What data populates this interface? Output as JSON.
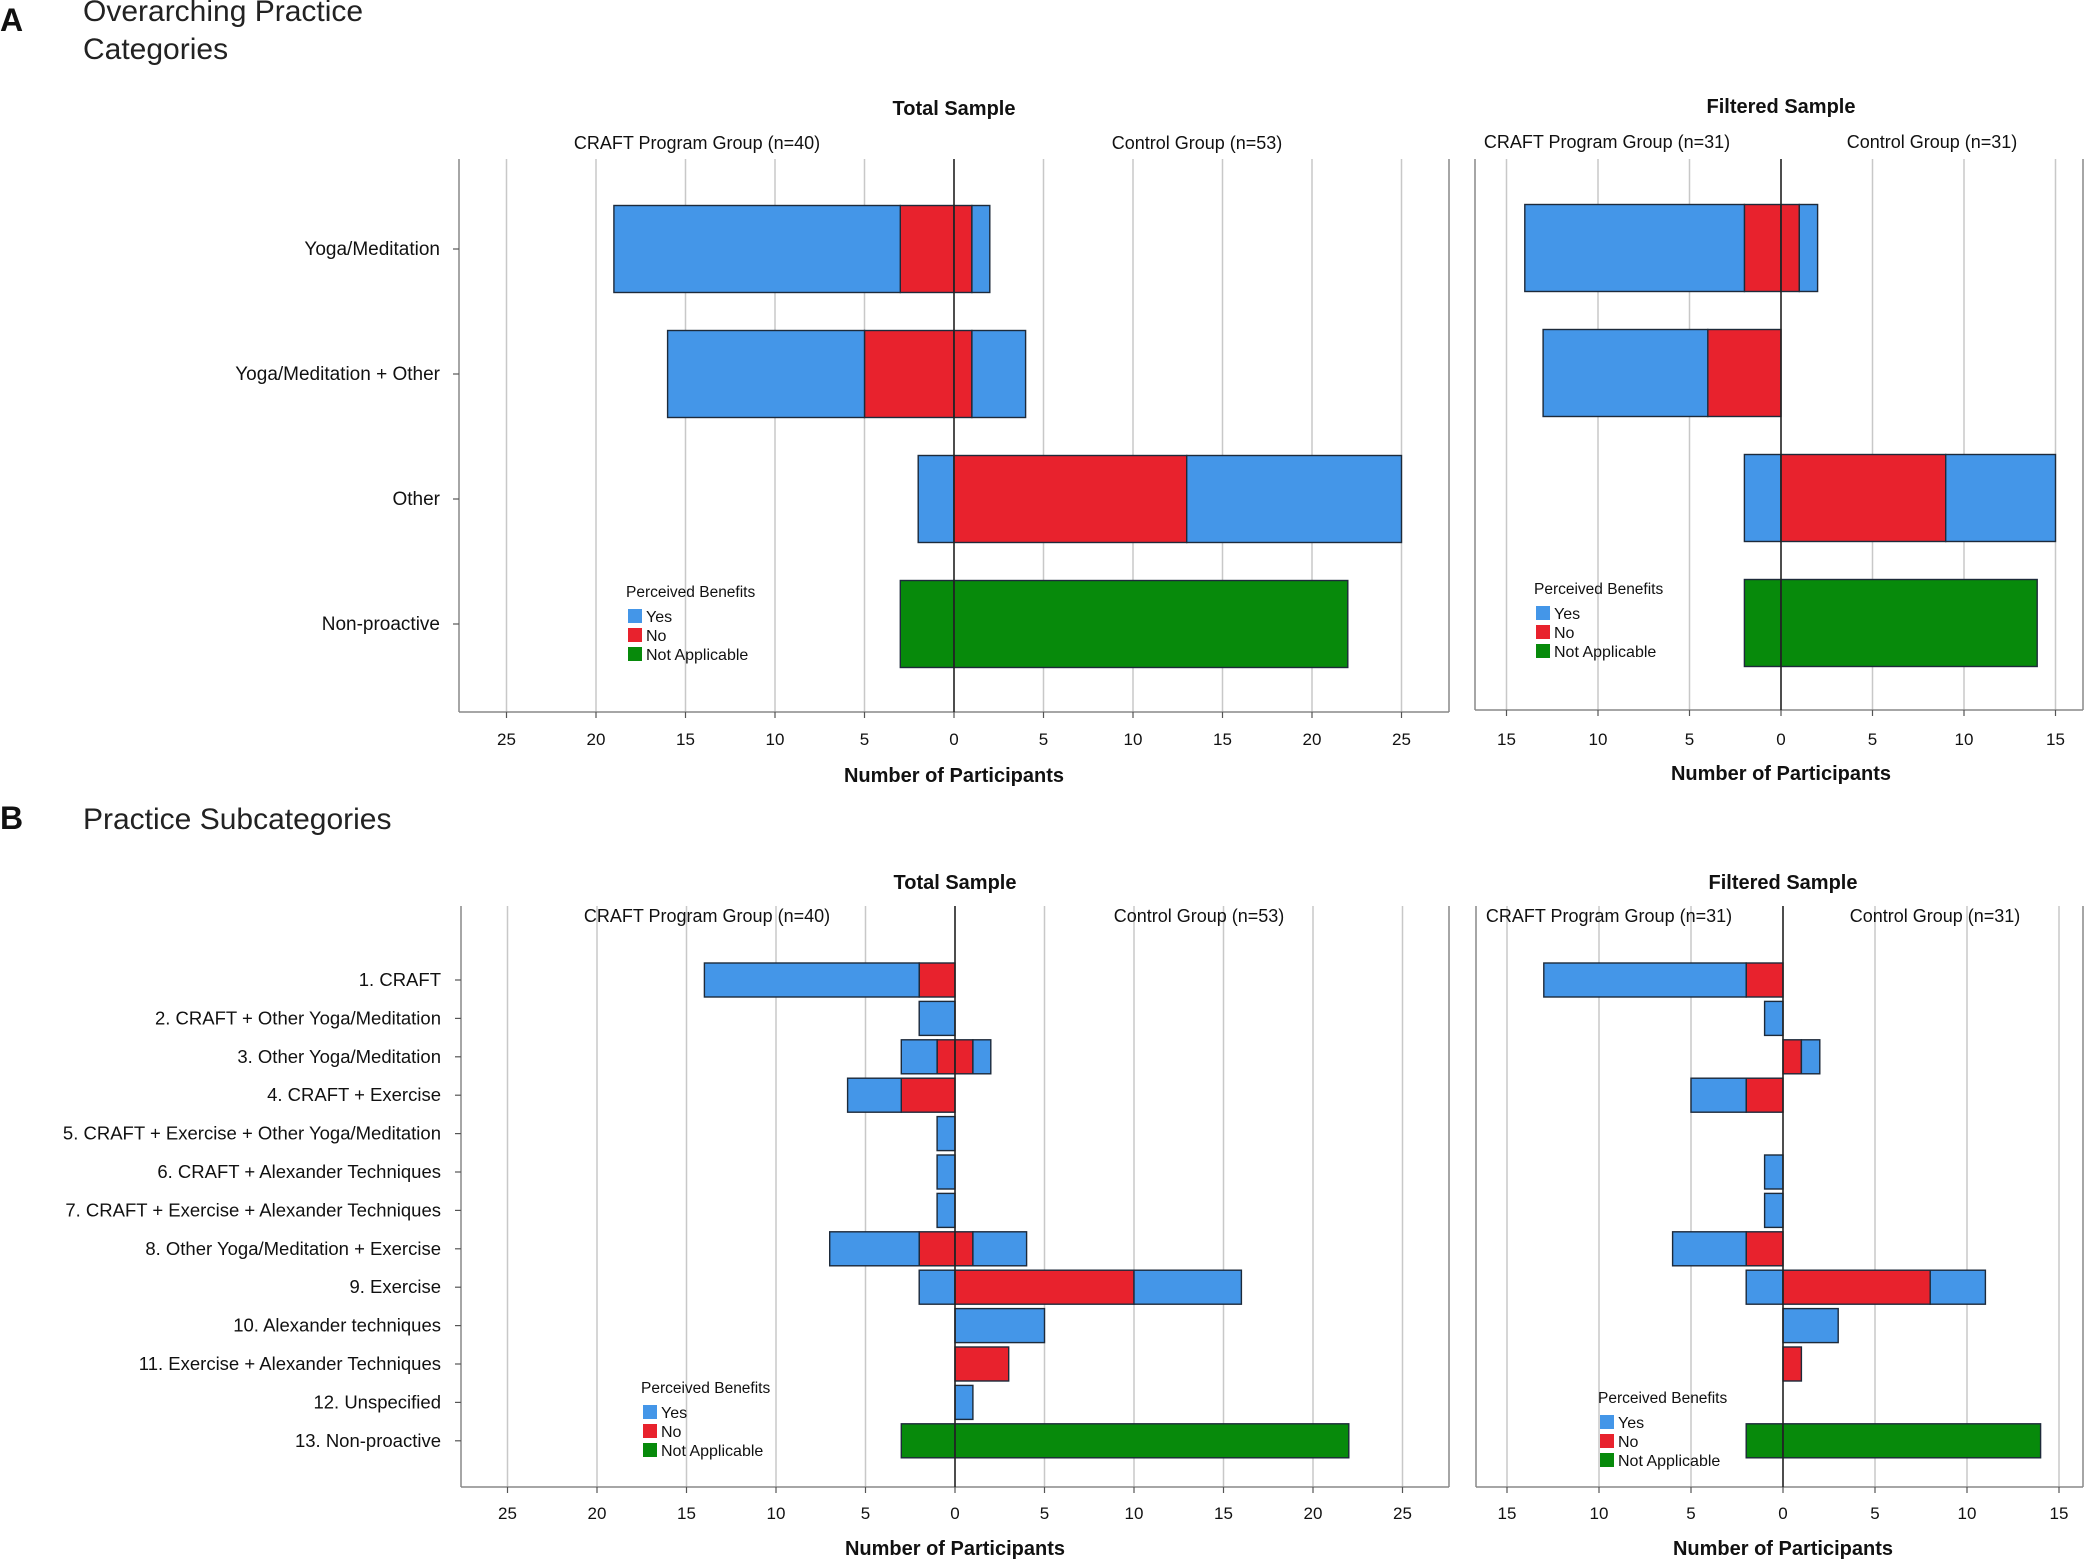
{
  "figure": {
    "panel_a": {
      "letter": "A",
      "title_line1": "Overarching Practice",
      "title_line2": "Categories"
    },
    "panel_b": {
      "letter": "B",
      "title": "Practice Subcategories"
    }
  },
  "colors": {
    "yes": "#4496e8",
    "no": "#e8222d",
    "not_applicable": "#078a0b",
    "axis": "#333333",
    "grid": "#c8c8c8"
  },
  "chart_data": [
    {
      "id": "A-total",
      "type": "bar",
      "orientation": "horizontal-diverging",
      "title": "Total Sample",
      "left_group": "CRAFT Program Group (n=40)",
      "right_group": "Control Group (n=53)",
      "xlabel": "Number of Participants",
      "xlim": [
        -27,
        28
      ],
      "ticks": [
        25,
        20,
        15,
        10,
        5,
        0,
        5,
        10,
        15,
        20,
        25
      ],
      "legend": {
        "title": "Perceived Benefits",
        "items": [
          "Yes",
          "No",
          "Not Applicable"
        ]
      },
      "categories": [
        "Yoga/Meditation",
        "Yoga/Meditation + Other",
        "Other",
        "Non-proactive"
      ],
      "craft": {
        "no": [
          3,
          5,
          0,
          0
        ],
        "yes": [
          16,
          11,
          2,
          0
        ],
        "not_applicable": [
          0,
          0,
          0,
          3
        ]
      },
      "control": {
        "no": [
          1,
          1,
          13,
          0
        ],
        "yes": [
          1,
          3,
          12,
          0
        ],
        "not_applicable": [
          0,
          0,
          0,
          22
        ]
      }
    },
    {
      "id": "A-filtered",
      "type": "bar",
      "orientation": "horizontal-diverging",
      "title": "Filtered Sample",
      "left_group": "CRAFT Program Group (n=31)",
      "right_group": "Control Group (n=31)",
      "xlabel": "Number of Participants",
      "xlim": [
        -16,
        16.5
      ],
      "ticks": [
        15,
        10,
        5,
        0,
        5,
        10,
        15
      ],
      "legend": {
        "title": "Perceived Benefits",
        "items": [
          "Yes",
          "No",
          "Not Applicable"
        ]
      },
      "categories": [
        "Yoga/Meditation",
        "Yoga/Meditation + Other",
        "Other",
        "Non-proactive"
      ],
      "craft": {
        "no": [
          2,
          4,
          0,
          0
        ],
        "yes": [
          12,
          9,
          2,
          0
        ],
        "not_applicable": [
          0,
          0,
          0,
          2
        ]
      },
      "control": {
        "no": [
          1,
          0,
          9,
          0
        ],
        "yes": [
          1,
          0,
          6,
          0
        ],
        "not_applicable": [
          0,
          0,
          0,
          14
        ]
      }
    },
    {
      "id": "B-total",
      "type": "bar",
      "orientation": "horizontal-diverging",
      "title": "Total Sample",
      "left_group": "CRAFT Program Group (n=40)",
      "right_group": "Control Group (n=53)",
      "xlabel": "Number of Participants",
      "xlim": [
        -27,
        28
      ],
      "ticks": [
        25,
        20,
        15,
        10,
        5,
        0,
        5,
        10,
        15,
        20,
        25
      ],
      "legend": {
        "title": "Perceived Benefits",
        "items": [
          "Yes",
          "No",
          "Not Applicable"
        ]
      },
      "categories": [
        "1. CRAFT",
        "2. CRAFT + Other Yoga/Meditation",
        "3. Other Yoga/Meditation",
        "4. CRAFT + Exercise",
        "5. CRAFT + Exercise + Other Yoga/Meditation",
        "6. CRAFT + Alexander Techniques",
        "7. CRAFT + Exercise + Alexander Techniques",
        "8. Other Yoga/Meditation + Exercise",
        "9. Exercise",
        "10. Alexander techniques",
        "11. Exercise + Alexander Techniques",
        "12. Unspecified",
        "13. Non-proactive"
      ],
      "craft": {
        "no": [
          2,
          0,
          1,
          3,
          0,
          0,
          0,
          2,
          0,
          0,
          0,
          0,
          0
        ],
        "yes": [
          12,
          2,
          2,
          3,
          1,
          1,
          1,
          5,
          2,
          0,
          0,
          0,
          0
        ],
        "not_applicable": [
          0,
          0,
          0,
          0,
          0,
          0,
          0,
          0,
          0,
          0,
          0,
          0,
          3
        ]
      },
      "control": {
        "no": [
          0,
          0,
          1,
          0,
          0,
          0,
          0,
          1,
          10,
          0,
          3,
          0,
          0
        ],
        "yes": [
          0,
          0,
          1,
          0,
          0,
          0,
          0,
          3,
          6,
          5,
          0,
          1,
          0
        ],
        "not_applicable": [
          0,
          0,
          0,
          0,
          0,
          0,
          0,
          0,
          0,
          0,
          0,
          0,
          22
        ]
      }
    },
    {
      "id": "B-filtered",
      "type": "bar",
      "orientation": "horizontal-diverging",
      "title": "Filtered Sample",
      "left_group": "CRAFT Program Group (n=31)",
      "right_group": "Control Group (n=31)",
      "xlabel": "Number of Participants",
      "xlim": [
        -16,
        16.5
      ],
      "ticks": [
        15,
        10,
        5,
        0,
        5,
        10,
        15
      ],
      "legend": {
        "title": "Perceived Benefits",
        "items": [
          "Yes",
          "No",
          "Not Applicable"
        ]
      },
      "categories": [
        "1. CRAFT",
        "2. CRAFT + Other Yoga/Meditation",
        "3. Other Yoga/Meditation",
        "4. CRAFT + Exercise",
        "5. CRAFT + Exercise + Other Yoga/Meditation",
        "6. CRAFT + Alexander Techniques",
        "7. CRAFT + Exercise + Alexander Techniques",
        "8. Other Yoga/Meditation + Exercise",
        "9. Exercise",
        "10. Alexander techniques",
        "11. Exercise + Alexander Techniques",
        "12. Unspecified",
        "13. Non-proactive"
      ],
      "craft": {
        "no": [
          2,
          0,
          0,
          2,
          0,
          0,
          0,
          2,
          0,
          0,
          0,
          0,
          0
        ],
        "yes": [
          11,
          1,
          0,
          3,
          0,
          1,
          1,
          4,
          2,
          0,
          0,
          0,
          0
        ],
        "not_applicable": [
          0,
          0,
          0,
          0,
          0,
          0,
          0,
          0,
          0,
          0,
          0,
          0,
          2
        ]
      },
      "control": {
        "no": [
          0,
          0,
          1,
          0,
          0,
          0,
          0,
          0,
          8,
          0,
          1,
          0,
          0
        ],
        "yes": [
          0,
          0,
          1,
          0,
          0,
          0,
          0,
          0,
          3,
          3,
          0,
          0,
          0
        ],
        "not_applicable": [
          0,
          0,
          0,
          0,
          0,
          0,
          0,
          0,
          0,
          0,
          0,
          0,
          14
        ]
      }
    }
  ]
}
